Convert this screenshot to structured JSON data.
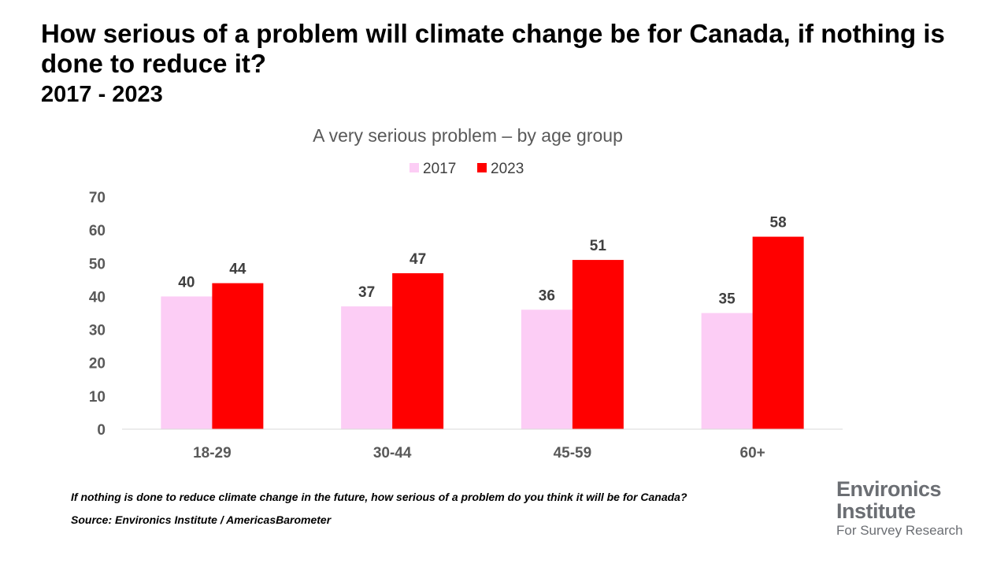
{
  "title": "How serious of a problem will climate change be for Canada, if nothing is done to reduce it?",
  "subtitle": "2017 - 2023",
  "footnote_question": "If nothing is done to reduce climate change in the future, how serious of a problem do you think it will be for Canada?",
  "footnote_source": "Source: Environics Institute / AmericasBarometer",
  "logo": {
    "line1": "Environics",
    "line2": "Institute",
    "line3": "For Survey Research"
  },
  "chart_data": {
    "type": "bar",
    "title": "A very serious problem – by age group",
    "categories": [
      "18-29",
      "30-44",
      "45-59",
      "60+"
    ],
    "series": [
      {
        "name": "2017",
        "values": [
          40,
          37,
          36,
          35
        ],
        "color": "#fccdf5"
      },
      {
        "name": "2023",
        "values": [
          44,
          47,
          51,
          58
        ],
        "color": "#ff0000"
      }
    ],
    "ylim": [
      0,
      70
    ],
    "yticks": [
      0,
      10,
      20,
      30,
      40,
      50,
      60,
      70
    ],
    "legend_position": "top-center",
    "grid": false
  }
}
